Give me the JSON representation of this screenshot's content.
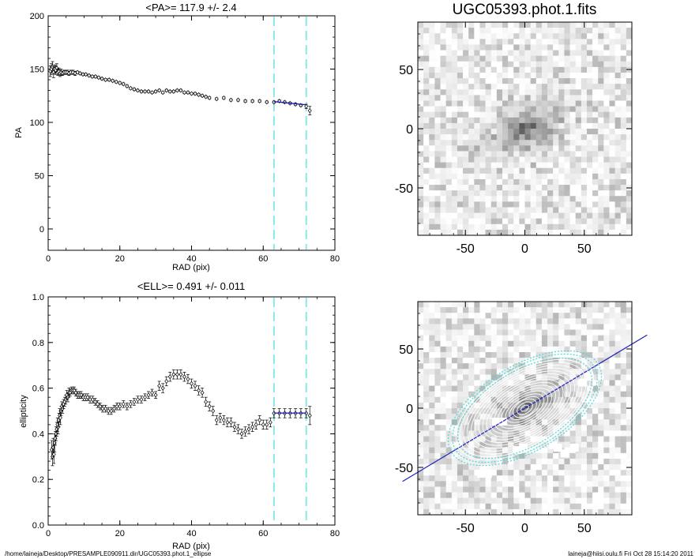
{
  "chart_data": [
    {
      "type": "scatter",
      "title": "<PA>= 117.9 +/-   2.4",
      "xlabel": "RAD (pix)",
      "ylabel": "PA",
      "xlim": [
        0,
        80
      ],
      "ylim": [
        -20,
        200
      ],
      "xticks": [
        "0",
        "20",
        "40",
        "60",
        "80"
      ],
      "yticks": [
        "0",
        "50",
        "100",
        "150",
        "200"
      ],
      "reference_lines_x": [
        63,
        72
      ],
      "reference_line_color": "#88e8e8",
      "fit_color": "#1a1ab8",
      "fit": {
        "x": [
          63,
          72
        ],
        "y": [
          119.5,
          116.5
        ]
      },
      "series": [
        {
          "marker": "open-diamond",
          "x": [
            0.6,
            0.9,
            1.2,
            1.5,
            1.8,
            2.1,
            2.4,
            2.7,
            3.0,
            3.3,
            3.6,
            4.0,
            4.4,
            4.8,
            5.3,
            5.8,
            6.3,
            6.9,
            7.5,
            8.2,
            8.9,
            9.7,
            10.5,
            11.4,
            12.3,
            13.2,
            14.1,
            15.0,
            16.0,
            17.0,
            18.0,
            19.0,
            20.0,
            21.0,
            22.0,
            23.0,
            24.0,
            25.0,
            26.0,
            27.0,
            28.0,
            29.0,
            30.0,
            31.0,
            32.0,
            33.0,
            34.0,
            35.0,
            36.0,
            37.0,
            38.0,
            39.0,
            40.0,
            41.0,
            42.0,
            43.0,
            44.0,
            45.0,
            47.0,
            49.0,
            51.0,
            53.0,
            55.0,
            57.0,
            59.0,
            61.0,
            63.0,
            64.5,
            66.0,
            67.5,
            69.0,
            70.5,
            72.0,
            73.0
          ],
          "y": [
            148,
            150,
            152,
            147,
            150,
            149,
            151,
            147,
            148,
            146,
            147,
            146,
            147,
            147,
            147,
            146,
            147,
            147,
            146,
            147,
            146,
            145,
            145,
            144,
            143,
            143,
            142,
            141,
            140,
            140,
            139,
            138,
            137,
            136,
            134,
            132,
            131,
            130,
            129,
            129,
            129,
            128,
            129,
            130,
            128,
            130,
            129,
            129,
            130,
            130,
            128,
            128,
            127,
            127,
            126,
            125,
            124,
            123,
            122,
            123,
            121,
            121,
            120,
            120,
            120,
            119,
            119,
            120,
            119,
            118,
            117,
            116,
            115,
            111
          ],
          "err": [
            5,
            5,
            5,
            5,
            4,
            4,
            4,
            3,
            3,
            3,
            3,
            2,
            2,
            2,
            2,
            2,
            2,
            2,
            2,
            1,
            1,
            1,
            1,
            1,
            1,
            1,
            1,
            1,
            1,
            1,
            1,
            1,
            1,
            1,
            1,
            1,
            1,
            1,
            1,
            1,
            1,
            1,
            1,
            1,
            1,
            1,
            1,
            1,
            1,
            1,
            1,
            1,
            1,
            1,
            1,
            1,
            1,
            1,
            1,
            1,
            1,
            1,
            1,
            1,
            1,
            1,
            1,
            1,
            1,
            1,
            1,
            1,
            2,
            4
          ]
        }
      ]
    },
    {
      "type": "scatter",
      "title": "<ELL>= 0.491 +/-  0.011",
      "xlabel": "RAD (pix)",
      "ylabel": "ellipticity",
      "xlim": [
        0,
        80
      ],
      "ylim": [
        0,
        1
      ],
      "xticks": [
        "0",
        "20",
        "40",
        "60",
        "80"
      ],
      "yticks": [
        "0.0",
        "0.2",
        "0.4",
        "0.6",
        "0.8",
        "1.0"
      ],
      "reference_lines_x": [
        63,
        72
      ],
      "reference_line_color": "#88e8e8",
      "fit_color": "#1a1ab8",
      "fit": {
        "x": [
          63,
          72
        ],
        "y": [
          0.491,
          0.491
        ]
      },
      "series": [
        {
          "marker": "open-diamond",
          "x": [
            1.0,
            1.2,
            1.4,
            1.6,
            1.8,
            2.0,
            2.2,
            2.4,
            2.6,
            2.8,
            3.0,
            3.2,
            3.4,
            3.6,
            3.8,
            4.0,
            4.3,
            4.6,
            4.9,
            5.2,
            5.5,
            5.8,
            6.1,
            6.5,
            6.9,
            7.3,
            7.7,
            8.2,
            8.7,
            9.2,
            9.8,
            10.4,
            11.0,
            11.7,
            12.4,
            13.1,
            13.8,
            14.5,
            15.2,
            16.0,
            16.8,
            17.6,
            18.4,
            19.2,
            20.0,
            21.0,
            22.0,
            23.0,
            24.0,
            25.0,
            26.0,
            27.0,
            28.0,
            29.0,
            30.0,
            31.0,
            32.0,
            33.0,
            34.0,
            35.0,
            36.0,
            37.0,
            38.0,
            39.0,
            40.0,
            41.0,
            42.0,
            43.0,
            44.0,
            45.0,
            46.0,
            47.0,
            48.0,
            49.0,
            50.0,
            51.0,
            52.0,
            53.0,
            54.0,
            55.0,
            56.0,
            57.0,
            58.0,
            59.0,
            60.0,
            61.0,
            62.0,
            63.0,
            64.5,
            66.0,
            67.5,
            69.0,
            70.5,
            72.0,
            73.0
          ],
          "y": [
            0.33,
            0.3,
            0.34,
            0.31,
            0.36,
            0.38,
            0.4,
            0.42,
            0.44,
            0.43,
            0.46,
            0.48,
            0.47,
            0.5,
            0.52,
            0.51,
            0.53,
            0.54,
            0.55,
            0.57,
            0.56,
            0.58,
            0.58,
            0.59,
            0.59,
            0.59,
            0.58,
            0.57,
            0.57,
            0.57,
            0.56,
            0.56,
            0.56,
            0.55,
            0.55,
            0.54,
            0.53,
            0.52,
            0.51,
            0.51,
            0.5,
            0.5,
            0.51,
            0.52,
            0.52,
            0.53,
            0.52,
            0.53,
            0.54,
            0.55,
            0.55,
            0.56,
            0.57,
            0.58,
            0.57,
            0.61,
            0.6,
            0.63,
            0.65,
            0.66,
            0.66,
            0.66,
            0.65,
            0.64,
            0.62,
            0.61,
            0.59,
            0.58,
            0.54,
            0.52,
            0.5,
            0.46,
            0.47,
            0.46,
            0.45,
            0.45,
            0.43,
            0.42,
            0.4,
            0.41,
            0.42,
            0.43,
            0.44,
            0.46,
            0.44,
            0.44,
            0.45,
            0.49,
            0.49,
            0.49,
            0.49,
            0.49,
            0.49,
            0.49,
            0.48
          ],
          "err": [
            0.04,
            0.04,
            0.04,
            0.04,
            0.04,
            0.03,
            0.03,
            0.03,
            0.03,
            0.03,
            0.03,
            0.03,
            0.03,
            0.02,
            0.02,
            0.02,
            0.02,
            0.02,
            0.02,
            0.02,
            0.02,
            0.02,
            0.015,
            0.015,
            0.015,
            0.015,
            0.015,
            0.015,
            0.015,
            0.015,
            0.015,
            0.015,
            0.015,
            0.015,
            0.015,
            0.015,
            0.015,
            0.015,
            0.015,
            0.015,
            0.015,
            0.015,
            0.015,
            0.015,
            0.015,
            0.015,
            0.015,
            0.015,
            0.015,
            0.015,
            0.015,
            0.015,
            0.015,
            0.015,
            0.015,
            0.02,
            0.02,
            0.02,
            0.02,
            0.02,
            0.02,
            0.02,
            0.02,
            0.02,
            0.02,
            0.02,
            0.02,
            0.02,
            0.02,
            0.02,
            0.02,
            0.02,
            0.02,
            0.02,
            0.02,
            0.02,
            0.02,
            0.02,
            0.02,
            0.02,
            0.02,
            0.02,
            0.02,
            0.02,
            0.02,
            0.02,
            0.02,
            0.02,
            0.02,
            0.02,
            0.02,
            0.02,
            0.02,
            0.02,
            0.04
          ]
        }
      ]
    },
    {
      "type": "heatmap",
      "title": "UGC05393.phot.1.fits",
      "xlim": [
        -90,
        90
      ],
      "ylim": [
        -90,
        90
      ],
      "xticks": [
        "-50",
        "0",
        "50"
      ],
      "yticks": [
        "-50",
        "0",
        "50"
      ],
      "colormap": "grayscale-inverted",
      "galaxy": {
        "position_angle_deg": 118,
        "ellipticity": 0.49,
        "center": [
          0,
          0
        ]
      }
    },
    {
      "type": "heatmap",
      "title": "",
      "xlim": [
        -90,
        90
      ],
      "ylim": [
        -90,
        90
      ],
      "xticks": [
        "-50",
        "0",
        "50"
      ],
      "yticks": [
        "-50",
        "0",
        "50"
      ],
      "colormap": "grayscale-inverted",
      "overlay": {
        "isophote_color": "#ffffff",
        "outer_isophote_color": "#50d8d8",
        "major_axis_color": "#2020c0",
        "masked_patch_color": "#ffffff"
      }
    }
  ],
  "footer": {
    "path": "/home/laineja/Desktop/PRESAMPLE090911.dir/UGC05393.phot.1_ellipse",
    "signature": "laineja@hiisi.oulu.fi  Fri Oct 28 15:14:20 2011"
  }
}
